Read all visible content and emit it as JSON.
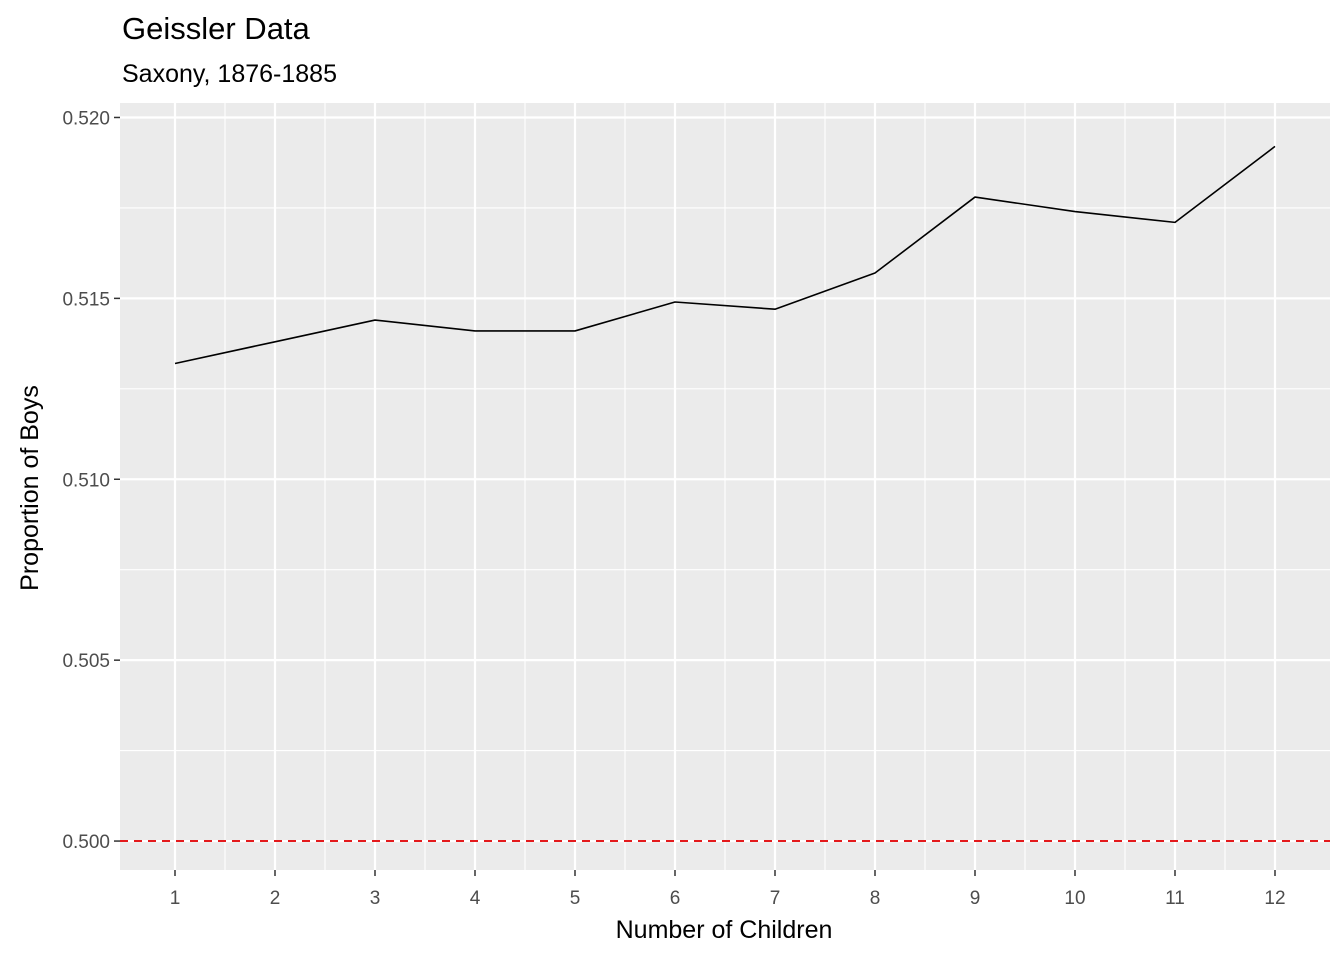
{
  "chart_data": {
    "type": "line",
    "title": "Geissler Data",
    "subtitle": "Saxony, 1876-1885",
    "xlabel": "Number of Children",
    "ylabel": "Proportion of Boys",
    "x": [
      1,
      2,
      3,
      4,
      5,
      6,
      7,
      8,
      9,
      10,
      11,
      12
    ],
    "x_tick_labels": [
      "1",
      "2",
      "3",
      "4",
      "5",
      "6",
      "7",
      "8",
      "9",
      "10",
      "11",
      "12"
    ],
    "series": [
      {
        "values": [
          0.5132,
          0.5138,
          0.5144,
          0.5141,
          0.5141,
          0.5149,
          0.5147,
          0.5157,
          0.5178,
          0.5174,
          0.5171,
          0.5192
        ],
        "color": "#000000"
      }
    ],
    "reference_line": {
      "y": 0.5,
      "color": "#e41a1c",
      "style": "dashed"
    },
    "y_ticks": [
      0.5,
      0.505,
      0.51,
      0.515,
      0.52
    ],
    "y_tick_labels": [
      "0.500",
      "0.505",
      "0.510",
      "0.515",
      "0.520"
    ],
    "xlim": [
      0.45,
      12.55
    ],
    "ylim": [
      0.4992,
      0.5204
    ],
    "grid": true,
    "panel_background": "#ebebeb",
    "grid_color": "#ffffff"
  }
}
